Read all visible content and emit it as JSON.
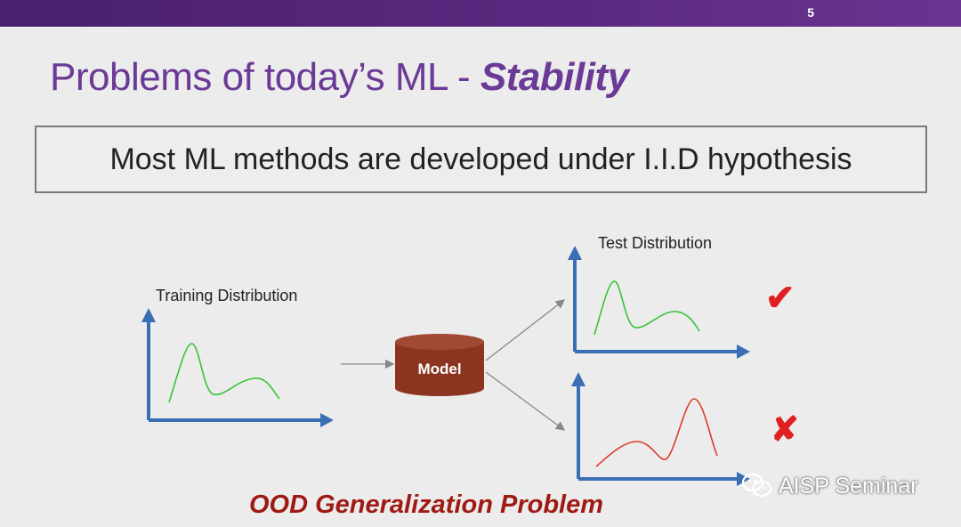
{
  "slide": {
    "page_number": "5",
    "title_prefix": "Problems of today’s ML - ",
    "title_emphasis": "Stability",
    "hypothesis": "Most ML methods are developed under I.I.D hypothesis",
    "training_label": "Training Distribution",
    "test_label": "Test Distribution",
    "model_label": "Model",
    "success_mark": "✔",
    "fail_mark": "✘",
    "footer": "OOD Generalization Problem",
    "watermark": "AISP Seminar"
  },
  "colors": {
    "header_bar": "#5a2a80",
    "title": "#6a3a96",
    "axis": "#3b6fb5",
    "curve_good": "#37c437",
    "curve_bad": "#e03a2a",
    "model": "#8b3520",
    "mark": "#e02020",
    "footer": "#a01a14"
  },
  "icons": {
    "watermark_icon": "wechat-icon",
    "model_shape": "database-cylinder"
  }
}
